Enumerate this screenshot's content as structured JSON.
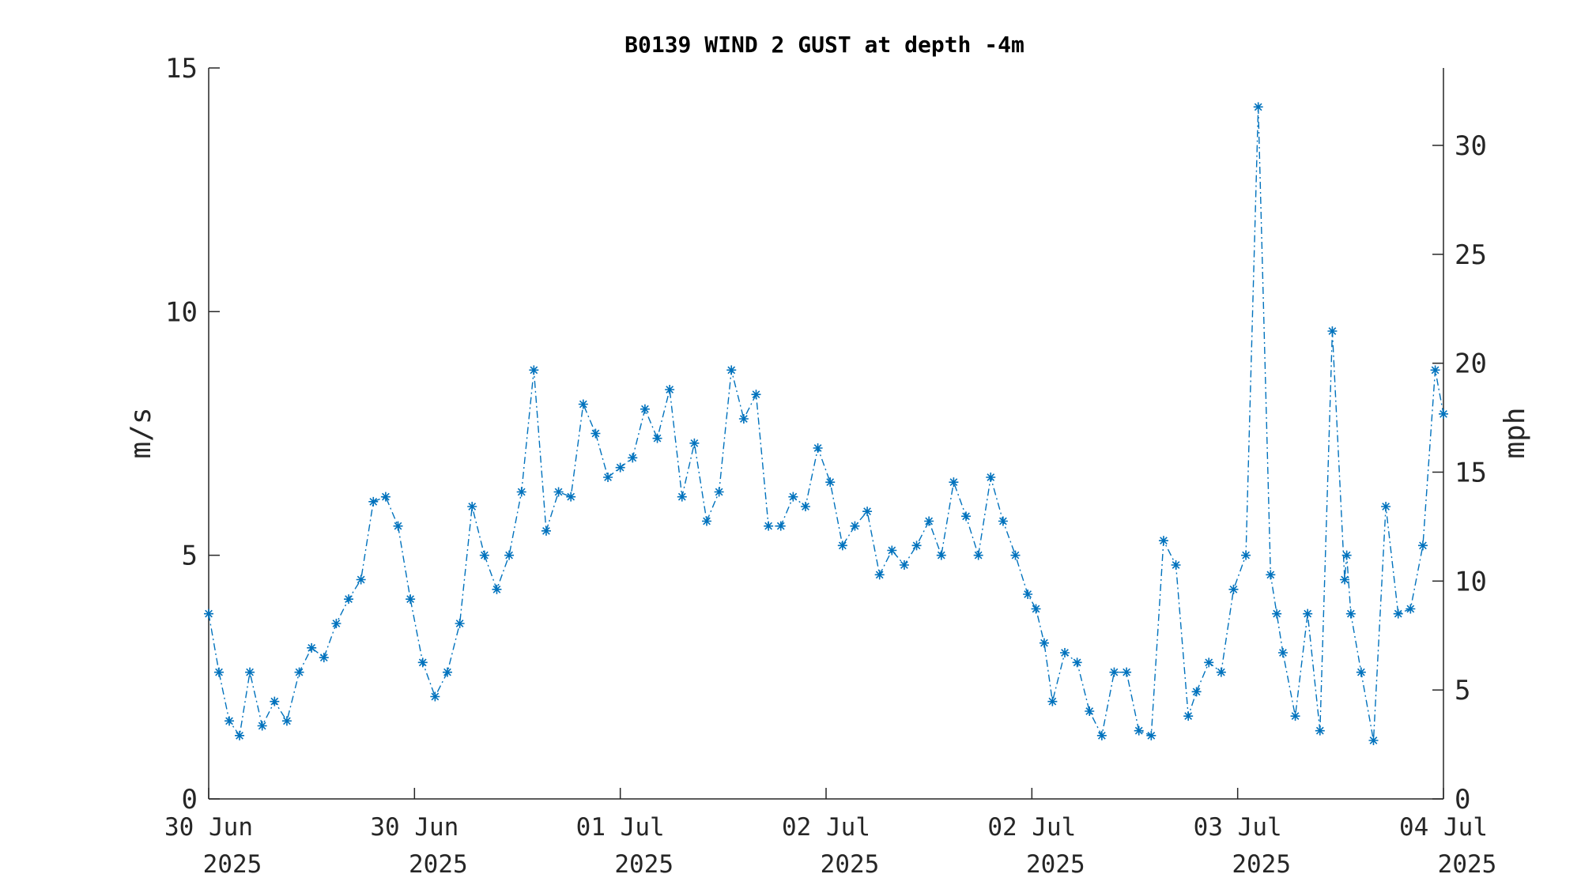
{
  "chart_data": {
    "type": "line",
    "title": "B0139 WIND 2 GUST at depth -4m",
    "ylabel_left": "m/s",
    "ylabel_right": "mph",
    "ylim_left": [
      0,
      15
    ],
    "ylim_right": [
      0,
      33.554
    ],
    "yticks_left": [
      0,
      5,
      10,
      15
    ],
    "yticks_right": [
      0,
      5,
      10,
      15,
      20,
      25,
      30
    ],
    "xlim": [
      0,
      6
    ],
    "xticks": [
      {
        "value": 0,
        "line1": "30 Jun",
        "line2": "2025"
      },
      {
        "value": 1,
        "line1": "30 Jun",
        "line2": "2025"
      },
      {
        "value": 2,
        "line1": "01 Jul",
        "line2": "2025"
      },
      {
        "value": 3,
        "line1": "02 Jul",
        "line2": "2025"
      },
      {
        "value": 4,
        "line1": "02 Jul",
        "line2": "2025"
      },
      {
        "value": 5,
        "line1": "03 Jul",
        "line2": "2025"
      },
      {
        "value": 6,
        "line1": "04 Jul",
        "line2": "2025"
      }
    ],
    "grid": false,
    "series": [
      {
        "color": "#0072BD",
        "line_style": "dash-dot",
        "marker": "asterisk",
        "x": [
          0.0,
          0.05,
          0.1,
          0.15,
          0.2,
          0.26,
          0.32,
          0.38,
          0.44,
          0.5,
          0.56,
          0.62,
          0.68,
          0.74,
          0.8,
          0.86,
          0.92,
          0.98,
          1.04,
          1.1,
          1.16,
          1.22,
          1.28,
          1.34,
          1.4,
          1.46,
          1.52,
          1.58,
          1.64,
          1.7,
          1.76,
          1.82,
          1.88,
          1.94,
          2.0,
          2.06,
          2.12,
          2.18,
          2.24,
          2.3,
          2.36,
          2.42,
          2.48,
          2.54,
          2.6,
          2.66,
          2.72,
          2.78,
          2.84,
          2.9,
          2.96,
          3.02,
          3.08,
          3.14,
          3.2,
          3.26,
          3.32,
          3.38,
          3.44,
          3.5,
          3.56,
          3.62,
          3.68,
          3.74,
          3.8,
          3.86,
          3.92,
          3.98,
          4.02,
          4.06,
          4.1,
          4.16,
          4.22,
          4.28,
          4.34,
          4.4,
          4.46,
          4.52,
          4.58,
          4.64,
          4.7,
          4.76,
          4.8,
          4.86,
          4.92,
          4.98,
          5.04,
          5.1,
          5.16,
          5.19,
          5.22,
          5.28,
          5.34,
          5.4,
          5.46,
          5.52,
          5.53,
          5.55,
          5.6,
          5.66,
          5.72,
          5.78,
          5.84,
          5.9,
          5.96,
          6.0
        ],
        "values": [
          3.8,
          2.6,
          1.6,
          1.3,
          2.6,
          1.5,
          2.0,
          1.6,
          2.6,
          3.1,
          2.9,
          3.6,
          4.1,
          4.5,
          6.1,
          6.2,
          5.6,
          4.1,
          2.8,
          2.1,
          2.6,
          3.6,
          6.0,
          5.0,
          4.3,
          5.0,
          6.3,
          8.8,
          5.5,
          6.3,
          6.2,
          8.1,
          7.5,
          6.6,
          6.8,
          7.0,
          8.0,
          7.4,
          8.4,
          6.2,
          7.3,
          5.7,
          6.3,
          8.8,
          7.8,
          8.3,
          5.6,
          5.6,
          6.2,
          6.0,
          7.2,
          6.5,
          5.2,
          5.6,
          5.9,
          4.6,
          5.1,
          4.8,
          5.2,
          5.7,
          5.0,
          6.5,
          5.8,
          5.0,
          6.6,
          5.7,
          5.0,
          4.2,
          3.9,
          3.2,
          2.0,
          3.0,
          2.8,
          1.8,
          1.3,
          2.6,
          2.6,
          1.4,
          1.3,
          5.3,
          4.8,
          1.7,
          2.2,
          2.8,
          2.6,
          4.3,
          5.0,
          14.2,
          4.6,
          3.8,
          3.0,
          1.7,
          3.8,
          1.4,
          9.6,
          4.5,
          5.0,
          3.8,
          2.6,
          1.2,
          6.0,
          3.8,
          3.9,
          5.2,
          8.8,
          7.9
        ]
      }
    ]
  }
}
